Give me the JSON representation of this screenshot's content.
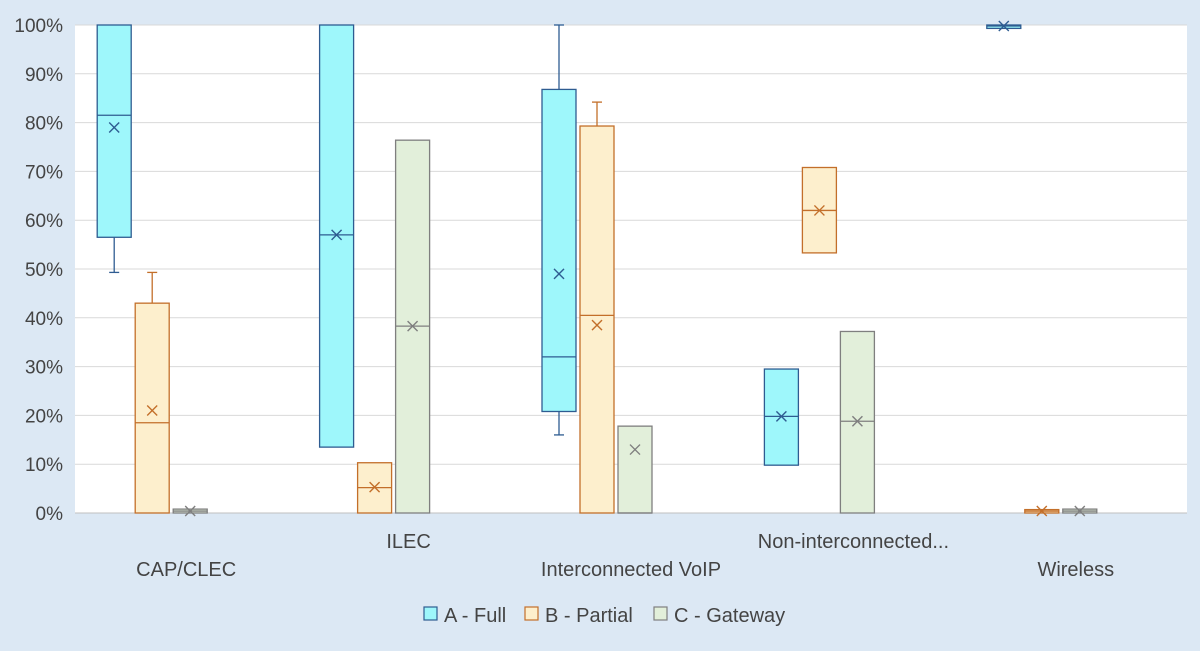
{
  "chart_data": {
    "type": "boxplot",
    "categories": [
      "CAP/CLEC",
      "ILEC",
      "Interconnected VoIP",
      "Non-interconnected...",
      "Wireless"
    ],
    "ylim": [
      0,
      100
    ],
    "y_ticks": [
      "0%",
      "10%",
      "20%",
      "30%",
      "40%",
      "50%",
      "60%",
      "70%",
      "80%",
      "90%",
      "100%"
    ],
    "legend_position": "bottom",
    "series": [
      {
        "name": "A - Full",
        "fill": "#9ef7fb",
        "stroke": "#2e5c91",
        "boxes": [
          {
            "category": "CAP/CLEC",
            "whisker_low": 49.3,
            "q1": 56.5,
            "median": 81.5,
            "q3": 100,
            "whisker_high": 100,
            "mean": 79
          },
          {
            "category": "ILEC",
            "whisker_low": 13.5,
            "q1": 13.5,
            "median": 57,
            "q3": 100,
            "whisker_high": 100,
            "mean": 57
          },
          {
            "category": "Interconnected VoIP",
            "whisker_low": 16,
            "q1": 20.8,
            "median": 32,
            "q3": 86.8,
            "whisker_high": 100,
            "mean": 49
          },
          {
            "category": "Non-interconnected...",
            "whisker_low": 9.8,
            "q1": 9.8,
            "median": 19.8,
            "q3": 29.5,
            "whisker_high": 29.5,
            "mean": 19.8
          },
          {
            "category": "Wireless",
            "whisker_low": 99.3,
            "q1": 99.3,
            "median": 99.8,
            "q3": 100,
            "whisker_high": 100,
            "mean": 99.8
          }
        ]
      },
      {
        "name": "B - Partial",
        "fill": "#fdefcd",
        "stroke": "#c36f2a",
        "boxes": [
          {
            "category": "CAP/CLEC",
            "whisker_low": 0,
            "q1": 0,
            "median": 18.5,
            "q3": 43,
            "whisker_high": 49.3,
            "mean": 21
          },
          {
            "category": "ILEC",
            "whisker_low": 0,
            "q1": 0,
            "median": 5.2,
            "q3": 10.3,
            "whisker_high": 10.3,
            "mean": 5.3
          },
          {
            "category": "Interconnected VoIP",
            "whisker_low": 0,
            "q1": 0,
            "median": 40.5,
            "q3": 79.3,
            "whisker_high": 84.2,
            "mean": 38.5
          },
          {
            "category": "Non-interconnected...",
            "whisker_low": 53.3,
            "q1": 53.3,
            "median": 62,
            "q3": 70.8,
            "whisker_high": 70.8,
            "mean": 62
          },
          {
            "category": "Wireless",
            "whisker_low": 0,
            "q1": 0,
            "median": 0.4,
            "q3": 0.7,
            "whisker_high": 0.7,
            "mean": 0.4
          }
        ]
      },
      {
        "name": "C - Gateway",
        "fill": "#e2efda",
        "stroke": "#7f7f7f",
        "boxes": [
          {
            "category": "CAP/CLEC",
            "whisker_low": 0,
            "q1": 0,
            "median": 0.4,
            "q3": 0.8,
            "whisker_high": 0.8,
            "mean": 0.4
          },
          {
            "category": "ILEC",
            "whisker_low": 0,
            "q1": 0,
            "median": 38.3,
            "q3": 76.4,
            "whisker_high": 76.4,
            "mean": 38.3
          },
          {
            "category": "Interconnected VoIP",
            "whisker_low": 0,
            "q1": 0,
            "median": 0,
            "q3": 17.8,
            "whisker_high": 17.8,
            "mean": 13
          },
          {
            "category": "Non-interconnected...",
            "whisker_low": 0,
            "q1": 0,
            "median": 18.8,
            "q3": 37.2,
            "whisker_high": 37.2,
            "mean": 18.8
          },
          {
            "category": "Wireless",
            "whisker_low": 0,
            "q1": 0,
            "median": 0.4,
            "q3": 0.8,
            "whisker_high": 0.8,
            "mean": 0.4
          }
        ]
      }
    ]
  }
}
